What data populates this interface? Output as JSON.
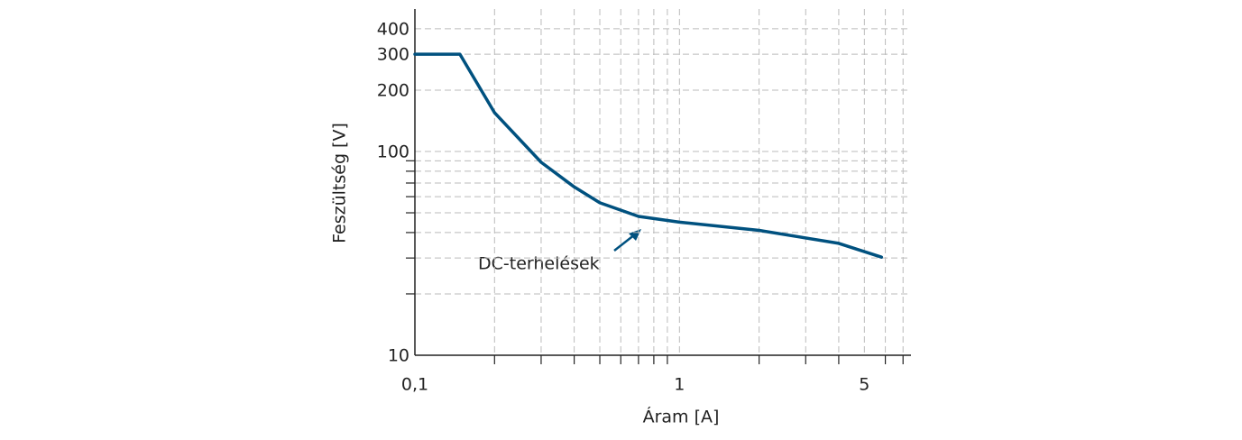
{
  "chart_data": {
    "type": "line",
    "x": [
      0.1,
      0.148,
      0.2,
      0.3,
      0.4,
      0.5,
      0.7,
      1,
      2,
      4,
      5.8
    ],
    "values": [
      300,
      300,
      155,
      88.5,
      67,
      56,
      48,
      45,
      41,
      35.4,
      30.3
    ],
    "color": "#00517f",
    "xlabel": "Áram [A]",
    "ylabel": "Feszültség [V]",
    "annotation": "DC-terhelések",
    "log_x": true,
    "log_y": true,
    "grid": true,
    "xlim": [
      0.1,
      7.5
    ],
    "ylim": [
      10,
      500
    ],
    "xticks": [
      {
        "value": 0.1,
        "label": "0,1"
      },
      1,
      5
    ],
    "xminorticks": [
      0.2,
      0.3,
      0.4,
      0.5,
      0.6,
      0.7,
      0.8,
      0.9,
      2,
      3,
      4,
      6,
      7
    ],
    "yticks": [
      10,
      100,
      200,
      300,
      400
    ],
    "yminorticks": [
      20,
      30,
      40,
      50,
      60,
      70,
      80,
      90
    ]
  }
}
